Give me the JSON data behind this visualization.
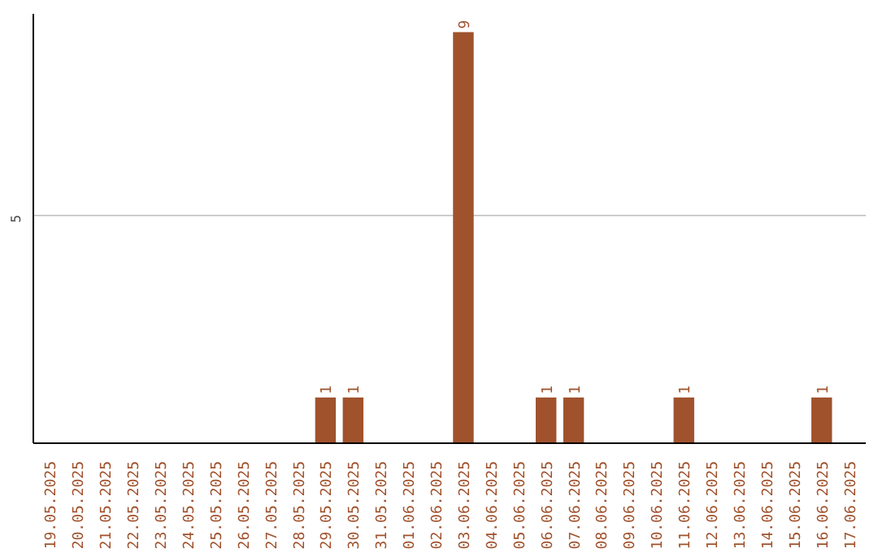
{
  "chart_data": {
    "type": "bar",
    "categories": [
      "19.05.2025",
      "20.05.2025",
      "21.05.2025",
      "22.05.2025",
      "23.05.2025",
      "24.05.2025",
      "25.05.2025",
      "26.05.2025",
      "27.05.2025",
      "28.05.2025",
      "29.05.2025",
      "30.05.2025",
      "31.05.2025",
      "01.06.2025",
      "02.06.2025",
      "03.06.2025",
      "04.06.2025",
      "05.06.2025",
      "06.06.2025",
      "07.06.2025",
      "08.06.2025",
      "09.06.2025",
      "10.06.2025",
      "11.06.2025",
      "12.06.2025",
      "13.06.2025",
      "14.06.2025",
      "15.06.2025",
      "16.06.2025",
      "17.06.2025"
    ],
    "values": [
      0,
      0,
      0,
      0,
      0,
      0,
      0,
      0,
      0,
      0,
      1,
      1,
      0,
      0,
      0,
      9,
      0,
      0,
      1,
      1,
      0,
      0,
      0,
      1,
      0,
      0,
      0,
      0,
      1,
      0
    ],
    "value_labels": [
      null,
      null,
      null,
      null,
      null,
      null,
      null,
      null,
      null,
      null,
      "1",
      "1",
      null,
      null,
      null,
      "9",
      null,
      null,
      "1",
      "1",
      null,
      null,
      null,
      "1",
      null,
      null,
      null,
      null,
      "1",
      null
    ],
    "color": "#a0522d",
    "ylim": [
      0,
      9.4
    ],
    "yticks": [
      5
    ],
    "grid": "y"
  }
}
